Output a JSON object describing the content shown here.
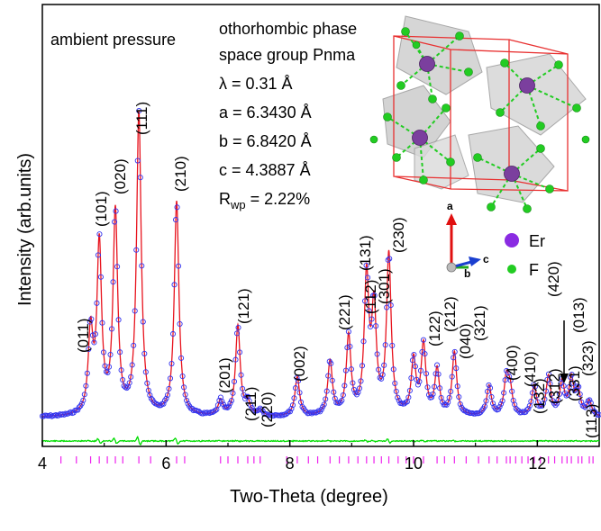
{
  "chart_data": {
    "type": "line",
    "title": "",
    "xlabel": "Two-Theta (degree)",
    "ylabel": "Intensity (arb.units)",
    "xlim": [
      4,
      13
    ],
    "xticks": [
      4,
      6,
      8,
      10,
      12
    ],
    "grid": false,
    "series_styles": {
      "observed": {
        "marker": "open circle",
        "color": "#3333ee"
      },
      "calculated": {
        "line": "solid",
        "color": "#e8141e"
      },
      "difference": {
        "line": "solid",
        "color": "#00dd00"
      },
      "bragg_positions": {
        "marker": "tick",
        "color": "#ee22ee"
      }
    },
    "peaks": [
      {
        "hkl": "(011)",
        "two_theta": 4.78,
        "intensity": 0.27
      },
      {
        "hkl": "(101)",
        "two_theta": 4.92,
        "intensity": 0.56
      },
      {
        "hkl": "(020)",
        "two_theta": 5.18,
        "intensity": 0.67
      },
      {
        "hkl": "(111)",
        "two_theta": 5.56,
        "intensity": 1.0
      },
      {
        "hkl": "(210)",
        "two_theta": 6.17,
        "intensity": 0.71
      },
      {
        "hkl": "(201)",
        "two_theta": 6.88,
        "intensity": 0.05
      },
      {
        "hkl": "(121)",
        "two_theta": 7.16,
        "intensity": 0.3
      },
      {
        "hkl": "(211)",
        "two_theta": 7.32,
        "intensity": 0.04
      },
      {
        "hkl": "(220)",
        "two_theta": 7.52,
        "intensity": 0.02
      },
      {
        "hkl": "(002)",
        "two_theta": 8.12,
        "intensity": 0.13
      },
      {
        "hkl": "(221)",
        "two_theta": 8.65,
        "intensity": 0.18
      },
      {
        "hkl": "(112)",
        "two_theta": 8.95,
        "intensity": 0.26
      },
      {
        "hkl": "(131)",
        "two_theta": 9.24,
        "intensity": 0.45
      },
      {
        "hkl": "(301)",
        "two_theta": 9.36,
        "intensity": 0.34
      },
      {
        "hkl": "(230)",
        "two_theta": 9.6,
        "intensity": 0.53
      },
      {
        "hkl": "(122)",
        "two_theta": 10.0,
        "intensity": 0.18
      },
      {
        "hkl": "(212)",
        "two_theta": 10.16,
        "intensity": 0.23
      },
      {
        "hkl": "(040)",
        "two_theta": 10.38,
        "intensity": 0.15
      },
      {
        "hkl": "(321)",
        "two_theta": 10.66,
        "intensity": 0.21
      },
      {
        "hkl": "(400)",
        "two_theta": 11.22,
        "intensity": 0.1
      },
      {
        "hkl": "(410)",
        "two_theta": 11.5,
        "intensity": 0.12
      },
      {
        "hkl": "(132)",
        "two_theta": 11.56,
        "intensity": 0.08
      },
      {
        "hkl": "(312)",
        "two_theta": 11.95,
        "intensity": 0.1
      },
      {
        "hkl": "(331)",
        "two_theta": 12.18,
        "intensity": 0.13
      },
      {
        "hkl": "(420)",
        "two_theta": 12.4,
        "intensity": 0.11
      },
      {
        "hkl": "(013)",
        "two_theta": 12.55,
        "intensity": 0.12
      },
      {
        "hkl": "(323)",
        "two_theta": 12.66,
        "intensity": 0.08
      },
      {
        "hkl": "(113)",
        "two_theta": 12.84,
        "intensity": 0.05
      }
    ],
    "extra_bragg_positions": [
      4.3,
      4.55,
      5.05,
      5.3,
      5.75,
      6.3,
      7.0,
      7.42,
      7.95,
      8.3,
      8.45,
      8.8,
      9.1,
      9.48,
      9.75,
      9.88,
      10.5,
      10.85,
      11.05,
      11.35,
      11.65,
      11.75,
      11.85,
      12.05,
      12.28,
      12.48,
      12.72,
      12.9
    ]
  },
  "annotations": {
    "pressure": "ambient pressure",
    "phase": "othorhombic phase",
    "space_group": "space group Pnma",
    "lambda": "λ = 0.31 Å",
    "a": "a = 6.3430 Å",
    "b": "b = 6.8420 Å",
    "c": "c = 4.3887 Å",
    "rwp_prefix": "R",
    "rwp_sub": "wp",
    "rwp_value": " = 2.22%"
  },
  "structure_inset": {
    "axis_a": "a",
    "axis_b": "b",
    "axis_c": "c",
    "legend": [
      {
        "label": "Er",
        "color": "#8a2be2"
      },
      {
        "label": "F",
        "color": "#22cc22"
      }
    ]
  }
}
